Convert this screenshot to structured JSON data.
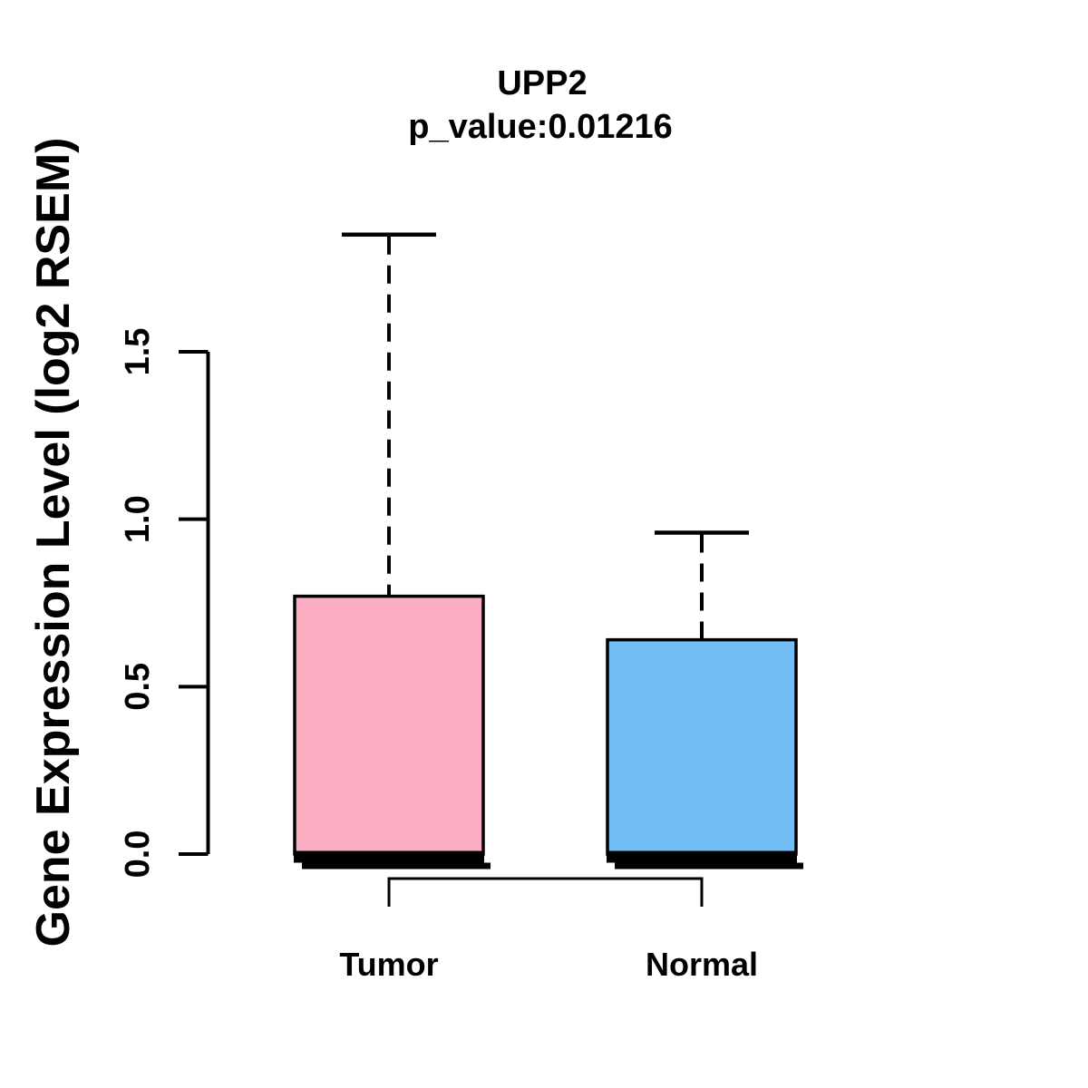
{
  "chart_data": {
    "type": "boxplot",
    "title": "UPP2",
    "subtitle": "p_value:0.01216",
    "ylabel": "Gene Expression Level (log2 RSEM)",
    "xlabel": "",
    "ylim": [
      0,
      1.9
    ],
    "ytick_values": [
      0,
      0.5,
      1.0,
      1.5
    ],
    "ytick_labels": [
      "0.0",
      "0.5",
      "1.0",
      "1.5"
    ],
    "grid": false,
    "legend_position": "none",
    "categories": [
      "Tumor",
      "Normal"
    ],
    "series": [
      {
        "name": "Tumor",
        "fill_color": "#FBAEC1",
        "whisker_low": 0.0,
        "q1": 0.0,
        "median": 0.0,
        "q3": 0.77,
        "whisker_high": 1.85
      },
      {
        "name": "Normal",
        "fill_color": "#74BEF8",
        "whisker_low": 0.0,
        "q1": 0.0,
        "median": 0.0,
        "q3": 0.64,
        "whisker_high": 0.96
      }
    ],
    "comparison_bracket": {
      "from": "Tumor",
      "to": "Normal"
    },
    "colors": {
      "line": "#000000",
      "text": "#000000",
      "background": "#FFFFFF"
    }
  }
}
